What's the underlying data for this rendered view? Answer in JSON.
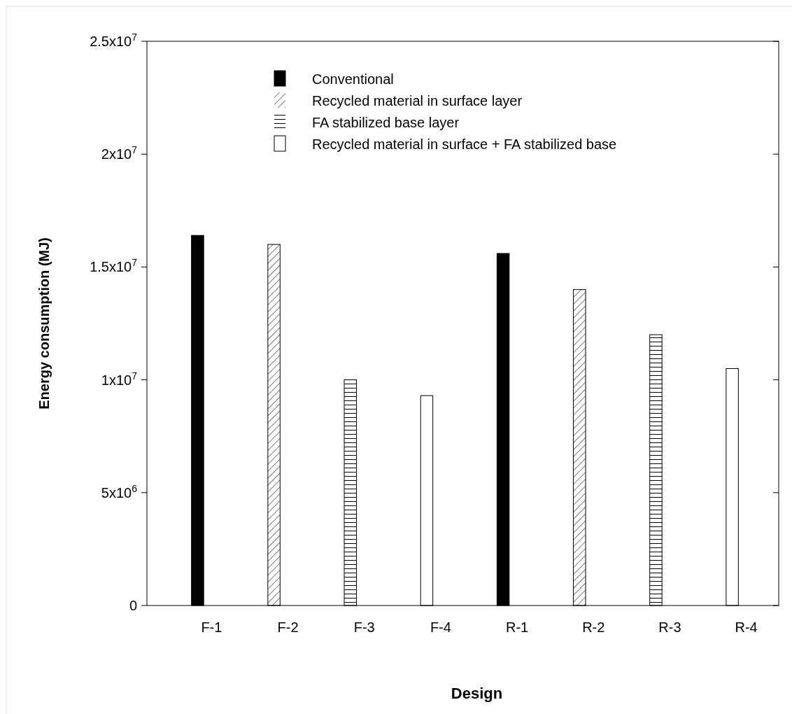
{
  "chart_data": {
    "type": "bar",
    "xlabel": "Design",
    "ylabel": "Energy consumption (MJ)",
    "categories": [
      "F-1",
      "F-2",
      "F-3",
      "F-4",
      "R-1",
      "R-2",
      "R-3",
      "R-4"
    ],
    "series": [
      {
        "name": "Conventional",
        "color": "#000000",
        "values": [
          16400000,
          null,
          null,
          null,
          15600000,
          null,
          null,
          null
        ]
      },
      {
        "name": "Recycled material in surface layer",
        "color": "#000000",
        "values": [
          null,
          16000000,
          null,
          null,
          null,
          14000000,
          null,
          null
        ]
      },
      {
        "name": "FA  stabilized base layer",
        "color": "#000000",
        "values": [
          null,
          null,
          10000000,
          null,
          null,
          null,
          12000000,
          null
        ]
      },
      {
        "name": "Recycled material in surface + FA stabilized base",
        "color": "#ffffff",
        "values": [
          null,
          null,
          null,
          9300000,
          null,
          null,
          null,
          10500000
        ]
      }
    ],
    "ylim": [
      0,
      25000000
    ],
    "yticks": [
      {
        "value": 0,
        "label": "0"
      },
      {
        "value": 5000000,
        "label": "5x10$^{6}$"
      },
      {
        "value": 10000000,
        "label": "1x10$^{7}$"
      },
      {
        "value": 15000000,
        "label": "1.5x10$^{7}$"
      },
      {
        "value": 20000000,
        "label": "2x10$^{7}$"
      },
      {
        "value": 25000000,
        "label": "2.5x10$^{7}$"
      }
    ],
    "grid": false,
    "legend": "top"
  }
}
